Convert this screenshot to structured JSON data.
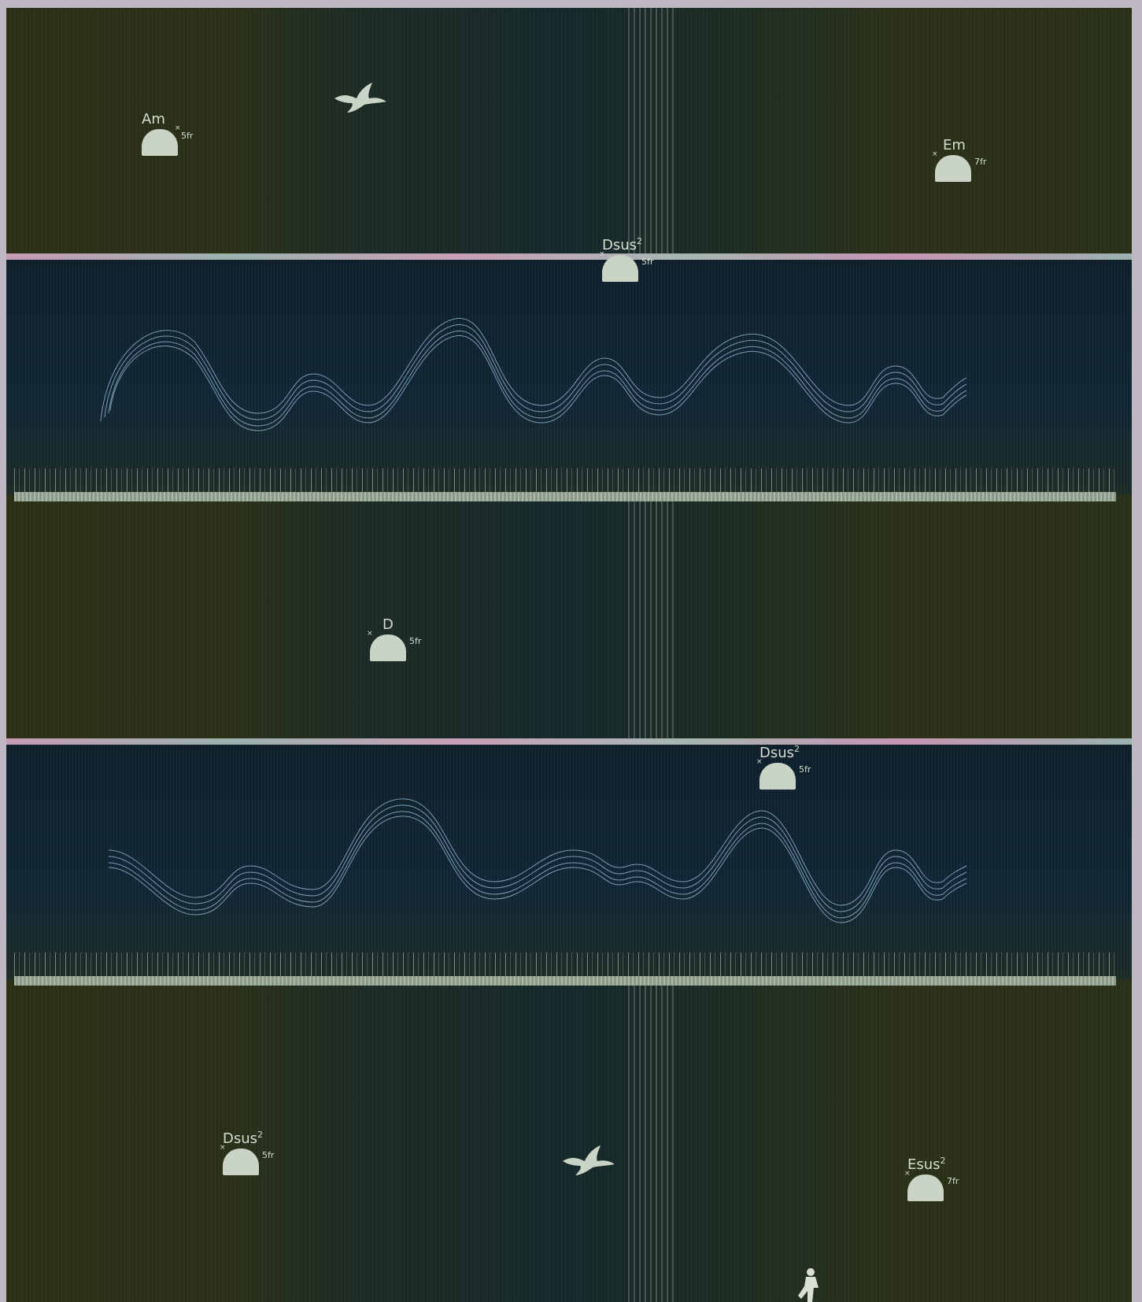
{
  "chords": [
    {
      "id": "am-1",
      "name": "Am",
      "sup": "",
      "fret": "5fr"
    },
    {
      "id": "em-1",
      "name": "Em",
      "sup": "",
      "fret": "7fr"
    },
    {
      "id": "dsus2-1",
      "name": "Dsus",
      "sup": "2",
      "fret": "5fr"
    },
    {
      "id": "d-1",
      "name": "D",
      "sup": "",
      "fret": "5fr"
    },
    {
      "id": "dsus2-2",
      "name": "Dsus",
      "sup": "2",
      "fret": "5fr"
    },
    {
      "id": "dsus2-3",
      "name": "Dsus",
      "sup": "2",
      "fret": "5fr"
    },
    {
      "id": "esus2-1",
      "name": "Esus",
      "sup": "2",
      "fret": "7fr"
    }
  ],
  "mute_mark": "×",
  "icons": [
    "bird-icon",
    "bird-icon",
    "figure-icon"
  ],
  "colors": {
    "olive_background": "#2b3018",
    "teal_band": "#102635",
    "chord_box": "#c9d3c6",
    "wave_stroke": "#9cc3de",
    "pink_line": "#c79cb4"
  }
}
